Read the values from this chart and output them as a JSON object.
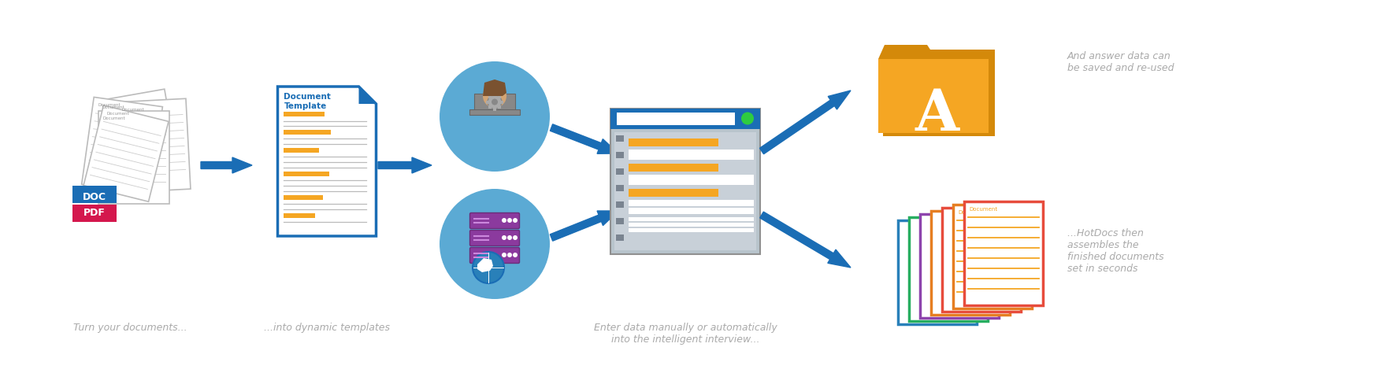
{
  "bg_color": "#ffffff",
  "arrow_color": "#1a6db5",
  "caption_color": "#aaaaaa",
  "blue_dark": "#1a6db5",
  "blue_circle": "#5baad4",
  "orange": "#f5a623",
  "orange_dark": "#e8971a",
  "red_pink": "#d4174d",
  "green_bright": "#2ecc40",
  "purple": "#8b3a9e",
  "white": "#ffffff",
  "captions": {
    "docs": "Turn your documents...",
    "template": "...into dynamic templates",
    "interview": "Enter data manually or automatically\ninto the intelligent interview...",
    "folder": "And answer data can\nbe saved and re-used",
    "output": "...HotDocs then\nassembles the\nfinished documents\nset in seconds"
  },
  "figsize": [
    17.71,
    4.74
  ],
  "dpi": 100
}
